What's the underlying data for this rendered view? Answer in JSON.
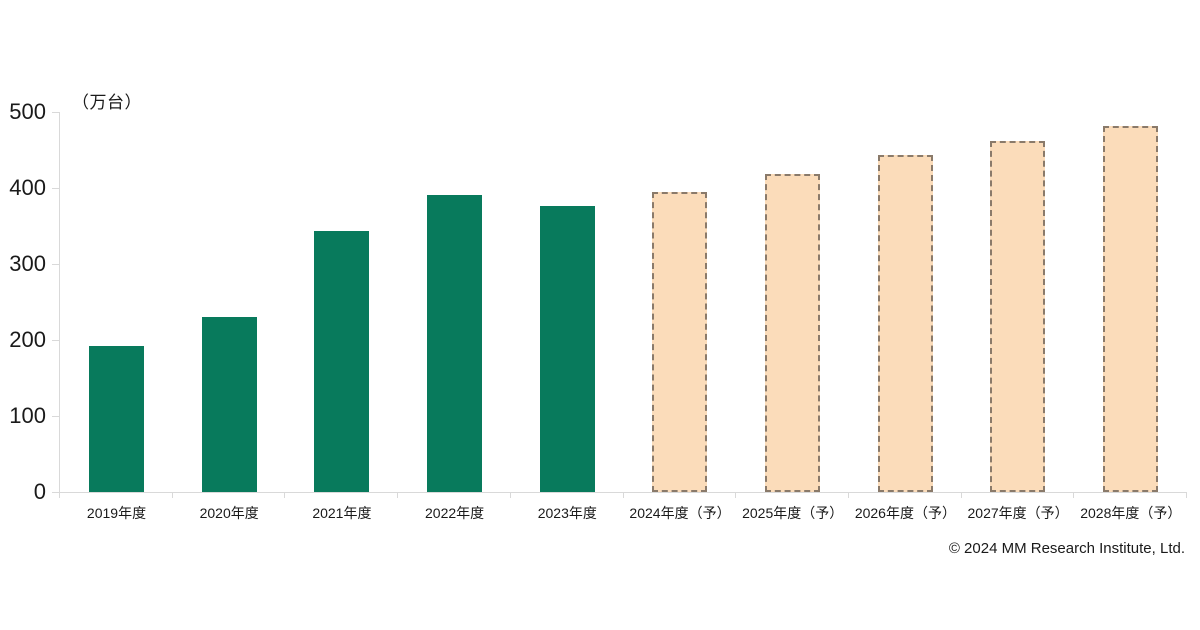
{
  "chart_data": {
    "type": "bar",
    "title": "",
    "unit_label": "（万台）",
    "xlabel": "",
    "ylabel": "万台",
    "ylim": [
      0,
      500
    ],
    "ytick_interval": 100,
    "ytick_labels": [
      "0",
      "100",
      "200",
      "300",
      "400",
      "500"
    ],
    "grid": false,
    "legend": "none",
    "categories": [
      "2019年度",
      "2020年度",
      "2021年度",
      "2022年度",
      "2023年度",
      "2024年度（予）",
      "2025年度（予）",
      "2026年度（予）",
      "2027年度（予）",
      "2028年度（予）"
    ],
    "values": [
      192,
      230,
      343,
      391,
      376,
      395,
      418,
      443,
      462,
      481
    ],
    "is_forecast": [
      false,
      false,
      false,
      false,
      false,
      true,
      true,
      true,
      true,
      true
    ],
    "colors": {
      "actual_fill": "#087a5c",
      "forecast_fill": "#fbdcba",
      "forecast_border": "#8a7a6a",
      "axis": "#d9d9d9",
      "text": "#1a1a1a"
    }
  },
  "footer": {
    "copyright": "© 2024 MM Research Institute, Ltd."
  }
}
